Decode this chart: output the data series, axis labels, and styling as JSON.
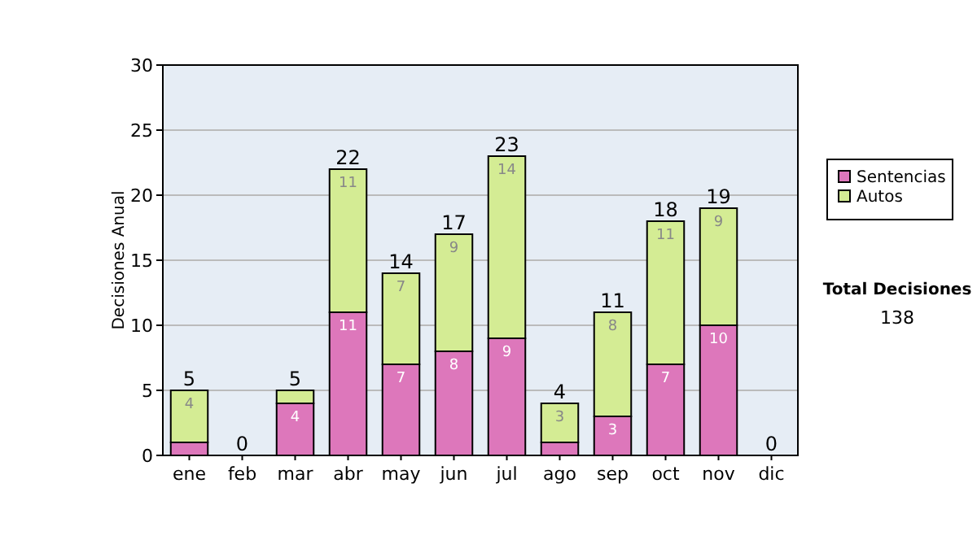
{
  "chart_data": {
    "type": "bar",
    "stacked": true,
    "ylabel": "Decisiones Anual",
    "categories": [
      "ene",
      "feb",
      "mar",
      "abr",
      "may",
      "jun",
      "jul",
      "ago",
      "sep",
      "oct",
      "nov",
      "dic"
    ],
    "series": [
      {
        "name": "Sentencias",
        "color": "#dd77bb",
        "values": [
          1,
          0,
          4,
          11,
          7,
          8,
          9,
          1,
          3,
          7,
          10,
          0
        ],
        "value_labels": [
          null,
          null,
          "4",
          "11",
          "7",
          "8",
          "9",
          null,
          "3",
          "7",
          "10",
          null
        ]
      },
      {
        "name": "Autos",
        "color": "#d4ec94",
        "values": [
          4,
          0,
          1,
          11,
          7,
          9,
          14,
          3,
          8,
          11,
          9,
          0
        ],
        "value_labels": [
          "4",
          null,
          null,
          "11",
          "7",
          "9",
          "14",
          "3",
          "8",
          "11",
          "9",
          null
        ]
      }
    ],
    "totals": [
      "5",
      "0",
      "5",
      "22",
      "14",
      "17",
      "23",
      "4",
      "11",
      "18",
      "19",
      "0"
    ],
    "ylim": [
      0,
      30
    ],
    "yticks": [
      0,
      5,
      10,
      15,
      20,
      25,
      30
    ],
    "grid": "y",
    "legend": "right",
    "annotations": [
      "Total Decisiones",
      "138"
    ]
  }
}
